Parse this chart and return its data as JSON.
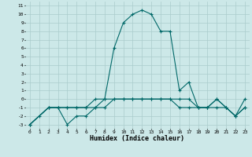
{
  "title": "",
  "xlabel": "Humidex (Indice chaleur)",
  "bg_color": "#cce8e8",
  "grid_color": "#aacccc",
  "line_color": "#006868",
  "xlim": [
    -0.5,
    23.5
  ],
  "ylim": [
    -3.5,
    11.5
  ],
  "xticks": [
    0,
    1,
    2,
    3,
    4,
    5,
    6,
    7,
    8,
    9,
    10,
    11,
    12,
    13,
    14,
    15,
    16,
    17,
    18,
    19,
    20,
    21,
    22,
    23
  ],
  "yticks": [
    11,
    10,
    9,
    8,
    7,
    6,
    5,
    4,
    3,
    2,
    1,
    0,
    -1,
    -2,
    -3
  ],
  "line1_x": [
    0,
    1,
    2,
    3,
    4,
    5,
    6,
    7,
    8,
    9,
    10,
    11,
    12,
    13,
    14,
    15,
    16,
    17,
    18,
    19,
    20,
    21,
    22,
    23
  ],
  "line1_y": [
    -3,
    -2,
    -1,
    -1,
    -3,
    -2,
    -2,
    -1,
    0,
    6,
    9,
    10,
    10.5,
    10,
    8,
    8,
    1,
    2,
    -1,
    -1,
    0,
    -1,
    -2,
    -1
  ],
  "line2_x": [
    0,
    2,
    3,
    4,
    5,
    6,
    7,
    8,
    9,
    10,
    11,
    12,
    13,
    14,
    15,
    16,
    17,
    18,
    19,
    20,
    21,
    22,
    23
  ],
  "line2_y": [
    -3,
    -1,
    -1,
    -1,
    -1,
    -1,
    -1,
    -1,
    0,
    0,
    0,
    0,
    0,
    0,
    0,
    -1,
    -1,
    -1,
    -1,
    -1,
    -1,
    -2,
    -1
  ],
  "line3_x": [
    0,
    2,
    3,
    4,
    5,
    6,
    7,
    8,
    9,
    10,
    11,
    12,
    13,
    14,
    15,
    16,
    17,
    18,
    19,
    20,
    21,
    22,
    23
  ],
  "line3_y": [
    -3,
    -1,
    -1,
    -1,
    -1,
    -1,
    0,
    0,
    0,
    0,
    0,
    0,
    0,
    0,
    0,
    0,
    0,
    -1,
    -1,
    0,
    -1,
    -2,
    0
  ]
}
